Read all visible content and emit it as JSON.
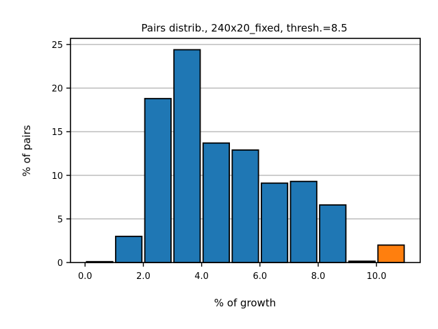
{
  "chart_data": {
    "type": "bar",
    "title": "Pairs distrib., 240x20_fixed, thresh.=8.5",
    "xlabel": "% of growth",
    "ylabel": "% of pairs",
    "x_ticks": [
      "0.0",
      "2.0",
      "4.0",
      "6.0",
      "8.0",
      "10.0"
    ],
    "y_ticks": [
      "0",
      "5",
      "10",
      "15",
      "20",
      "25"
    ],
    "xlim": [
      -0.5,
      11.5
    ],
    "ylim": [
      0,
      25.7
    ],
    "grid": "y",
    "bin_width": 1,
    "bars": [
      {
        "x": 0,
        "value": 0.1,
        "color": "#1f77b4"
      },
      {
        "x": 1,
        "value": 3.0,
        "color": "#1f77b4"
      },
      {
        "x": 2,
        "value": 18.8,
        "color": "#1f77b4"
      },
      {
        "x": 3,
        "value": 24.4,
        "color": "#1f77b4"
      },
      {
        "x": 4,
        "value": 13.7,
        "color": "#1f77b4"
      },
      {
        "x": 5,
        "value": 12.9,
        "color": "#1f77b4"
      },
      {
        "x": 6,
        "value": 9.1,
        "color": "#1f77b4"
      },
      {
        "x": 7,
        "value": 9.3,
        "color": "#1f77b4"
      },
      {
        "x": 8,
        "value": 6.6,
        "color": "#1f77b4"
      },
      {
        "x": 9,
        "value": 0.15,
        "color": "#1f77b4"
      },
      {
        "x": 10,
        "value": 2.0,
        "color": "#ff7f0e"
      }
    ]
  }
}
